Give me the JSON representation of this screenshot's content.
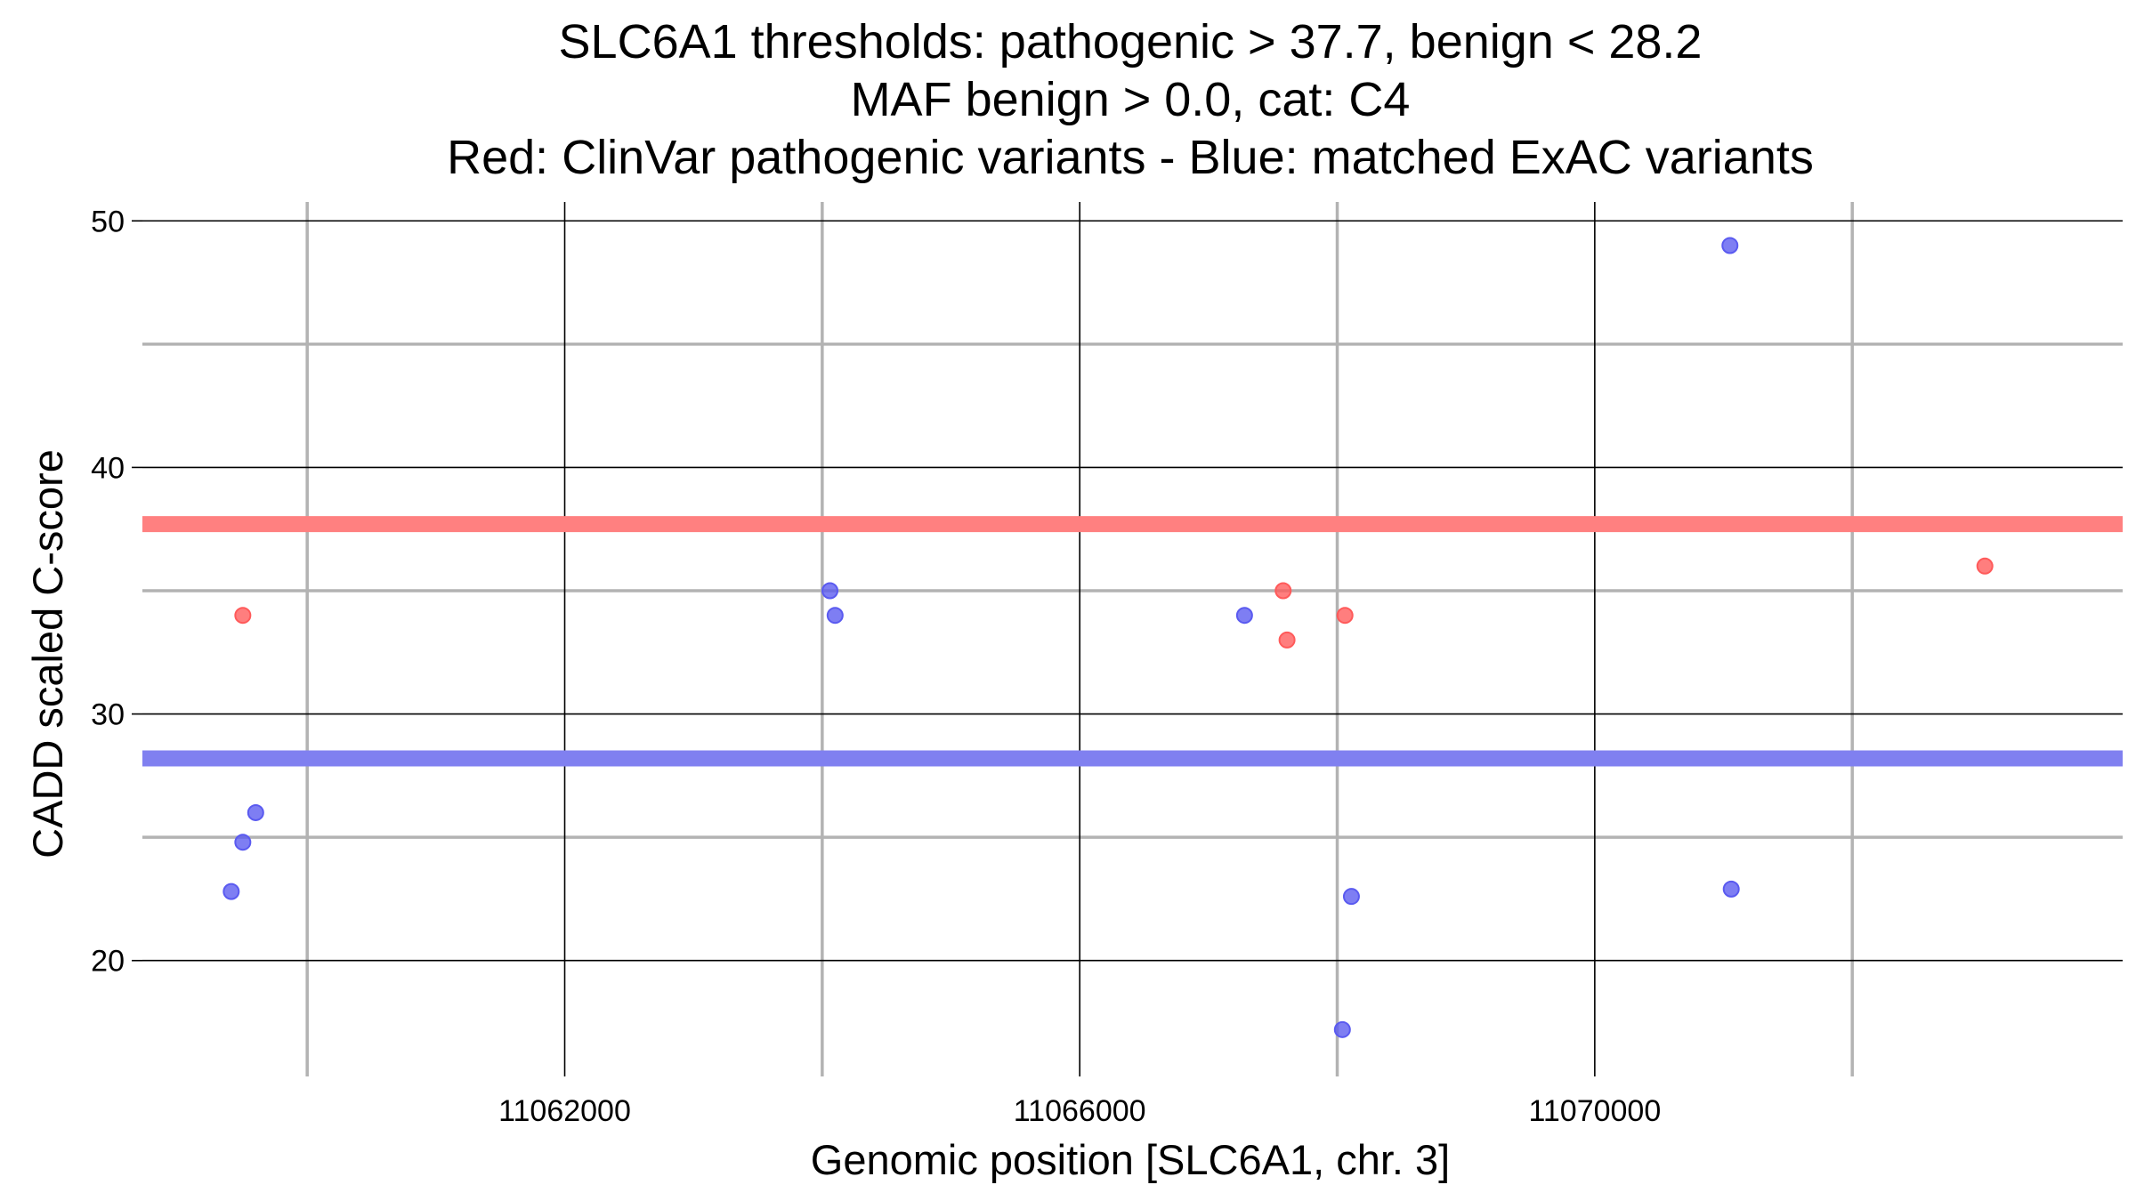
{
  "chart_data": {
    "type": "scatter",
    "title_lines": [
      "SLC6A1 thresholds: pathogenic > 37.7, benign < 28.2",
      "MAF benign > 0.0, cat: C4",
      "Red: ClinVar pathogenic variants - Blue: matched ExAC variants"
    ],
    "xlabel": "Genomic position [SLC6A1, chr. 3]",
    "ylabel": "CADD scaled C-score",
    "xlim": [
      11058720,
      11074100
    ],
    "ylim": [
      15.3,
      51.2
    ],
    "x_major_ticks": [
      11062000,
      11066000,
      11070000
    ],
    "x_minor_lines": [
      11060000,
      11064000,
      11068000,
      11072000
    ],
    "y_major_ticks": [
      20,
      30,
      40,
      50
    ],
    "y_minor_lines": [
      25,
      35,
      45
    ],
    "thresholds": [
      {
        "label": "pathogenic",
        "value": 37.7,
        "color": "#ff8080"
      },
      {
        "label": "benign",
        "value": 28.2,
        "color": "#8080f0"
      }
    ],
    "grid": true,
    "series": [
      {
        "color": "#ff5a5a",
        "points": [
          {
            "x": 11059500,
            "y": 34
          },
          {
            "x": 11067580,
            "y": 35
          },
          {
            "x": 11067610,
            "y": 33
          },
          {
            "x": 11068060,
            "y": 34
          },
          {
            "x": 11073030,
            "y": 36
          }
        ]
      },
      {
        "color": "#5a5af0",
        "points": [
          {
            "x": 11059410,
            "y": 22.8
          },
          {
            "x": 11059500,
            "y": 24.8
          },
          {
            "x": 11059600,
            "y": 26
          },
          {
            "x": 11064060,
            "y": 35
          },
          {
            "x": 11064100,
            "y": 34
          },
          {
            "x": 11067280,
            "y": 34
          },
          {
            "x": 11068040,
            "y": 17.2
          },
          {
            "x": 11068110,
            "y": 22.6
          },
          {
            "x": 11071050,
            "y": 49
          },
          {
            "x": 11071060,
            "y": 22.9
          }
        ]
      }
    ]
  }
}
